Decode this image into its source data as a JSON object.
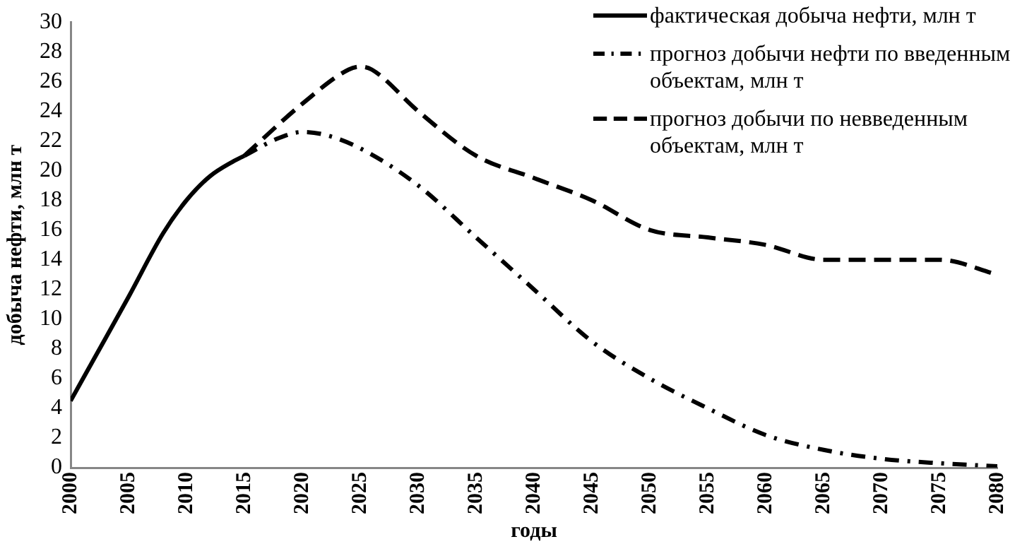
{
  "chart_data": {
    "type": "line",
    "xlabel": "годы",
    "ylabel": "добыча нефти, млн т",
    "xlim": [
      2000,
      2080
    ],
    "xticks": [
      2000,
      2005,
      2010,
      2015,
      2020,
      2025,
      2030,
      2035,
      2040,
      2045,
      2050,
      2055,
      2060,
      2065,
      2070,
      2075,
      2080
    ],
    "ylim": [
      0,
      30
    ],
    "yticks": [
      0,
      2,
      4,
      6,
      8,
      10,
      12,
      14,
      16,
      18,
      20,
      22,
      24,
      26,
      28,
      30
    ],
    "grid": false,
    "legend": "top right",
    "marker": "none",
    "series": [
      {
        "name": "фактическая добыча нефти, млн т",
        "color": "#000000",
        "line_style": "solid",
        "x": [
          2000,
          2002,
          2005,
          2008,
          2010,
          2012,
          2014,
          2015
        ],
        "values": [
          4.5,
          7.3,
          11.5,
          15.8,
          18,
          19.6,
          20.6,
          21
        ]
      },
      {
        "name": "прогноз добычи нефти по введенным объектам, млн т",
        "color": "#000000",
        "line_style": "dashdot",
        "x": [
          2015,
          2018,
          2020,
          2022,
          2025,
          2030,
          2035,
          2040,
          2045,
          2050,
          2055,
          2060,
          2065,
          2070,
          2075,
          2080
        ],
        "values": [
          21,
          22.2,
          22.6,
          22.4,
          21.5,
          19,
          15.5,
          12,
          8.5,
          6,
          4,
          2.2,
          1.2,
          0.6,
          0.3,
          0.1
        ]
      },
      {
        "name": "прогноз добычи по невведенным объектам, млн т",
        "color": "#000000",
        "line_style": "dashed",
        "x": [
          2015,
          2020,
          2024,
          2025,
          2026,
          2030,
          2035,
          2040,
          2045,
          2050,
          2055,
          2060,
          2065,
          2070,
          2075,
          2080
        ],
        "values": [
          21,
          24.5,
          26.8,
          27,
          26.8,
          24,
          21,
          19.5,
          18,
          16,
          15.5,
          15,
          14,
          14,
          14,
          13
        ]
      }
    ]
  }
}
